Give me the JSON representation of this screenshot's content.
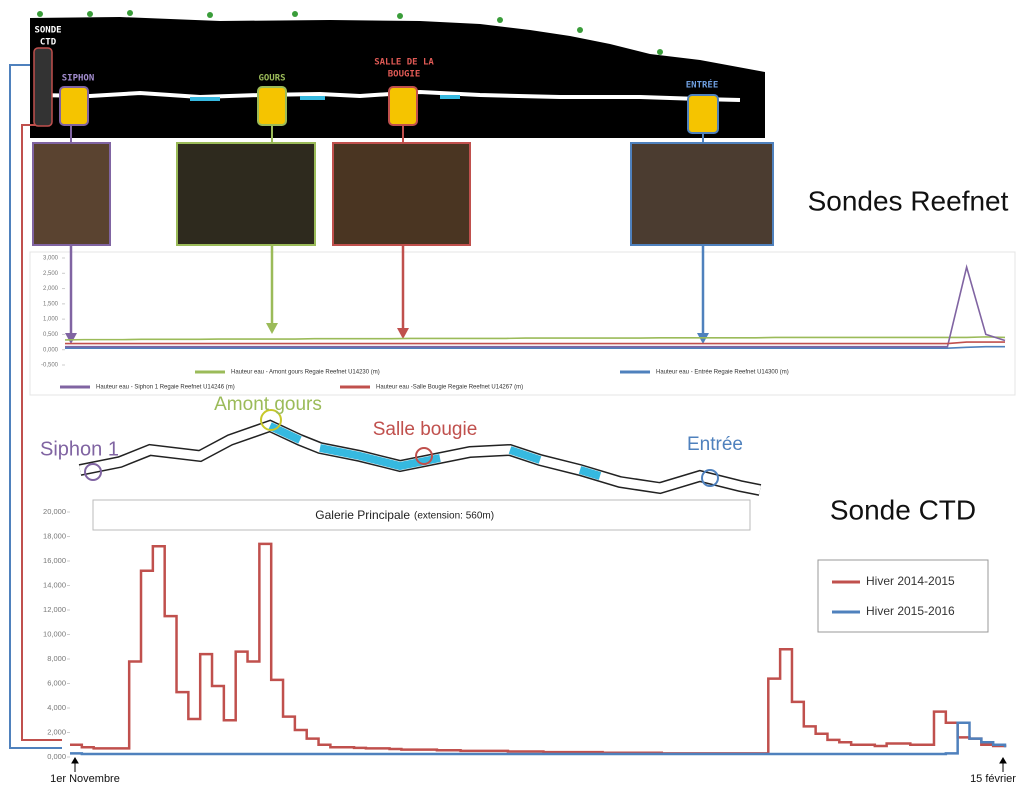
{
  "figure": {
    "profile_labels": {
      "ctd": [
        "SONDE",
        "CTD"
      ],
      "siphon": "SIPHON",
      "gours": "GOURS",
      "bougie": [
        "SALLE DE LA",
        "BOUGIE"
      ],
      "entree": "ENTRÉE"
    },
    "map_labels": {
      "siphon": "Siphon 1",
      "gours": "Amont gours",
      "bougie": "Salle bougie",
      "entree": "Entrée"
    },
    "map_caption": "Galerie Principale",
    "map_caption_note": "(extension: 560m)"
  },
  "chart_data": [
    {
      "type": "line",
      "title": "Sondes Reefnet",
      "legend": "bottom",
      "categories": [
        null,
        null,
        null,
        null,
        null,
        null,
        null,
        null,
        null,
        null,
        null,
        null,
        null,
        null,
        null,
        null,
        null,
        null,
        null,
        null,
        null,
        null,
        null,
        null,
        null,
        null,
        null,
        null,
        null,
        null,
        null,
        null,
        null,
        null,
        null,
        null,
        null,
        null,
        null,
        null,
        null,
        null,
        null,
        null,
        null,
        null,
        null,
        null,
        null,
        null
      ],
      "ylim": [
        -0.5,
        3
      ],
      "yticks": [
        {
          "value": -0.5,
          "label": "-0,500"
        },
        {
          "value": 0,
          "label": "0,000"
        },
        {
          "value": 0.5,
          "label": "0,500"
        },
        {
          "value": 1,
          "label": "1,000"
        },
        {
          "value": 1.5,
          "label": "1,500"
        },
        {
          "value": 2,
          "label": "2,000"
        },
        {
          "value": 2.5,
          "label": "2,500"
        },
        {
          "value": 3,
          "label": "3,000"
        }
      ],
      "series": [
        {
          "name": "Hauteur eau - Amont gours Regaie Reefnet U14230 (m)",
          "color": "#9bbb59",
          "values": [
            0.32,
            0.33,
            0.33,
            0.33,
            0.34,
            0.34,
            0.34,
            0.34,
            0.35,
            0.35,
            0.35,
            0.35,
            0.35,
            0.36,
            0.36,
            0.36,
            0.36,
            0.36,
            0.37,
            0.37,
            0.37,
            0.37,
            0.37,
            0.37,
            0.38,
            0.38,
            0.38,
            0.38,
            0.38,
            0.38,
            0.38,
            0.39,
            0.39,
            0.39,
            0.39,
            0.39,
            0.39,
            0.4,
            0.4,
            0.4,
            0.4,
            0.4,
            0.4,
            0.4,
            0.4,
            0.4,
            0.4,
            0.4,
            0.42,
            0.4
          ]
        },
        {
          "name": "Hauteur eau - Entrée Regaie Reefnet U14300 (m)",
          "color": "#4f81bd",
          "values": [
            0.05,
            0.05,
            0.05,
            0.05,
            0.05,
            0.05,
            0.05,
            0.05,
            0.05,
            0.05,
            0.05,
            0.05,
            0.05,
            0.05,
            0.05,
            0.05,
            0.05,
            0.05,
            0.05,
            0.05,
            0.05,
            0.05,
            0.05,
            0.05,
            0.05,
            0.05,
            0.05,
            0.05,
            0.05,
            0.05,
            0.05,
            0.05,
            0.05,
            0.05,
            0.05,
            0.05,
            0.05,
            0.05,
            0.05,
            0.05,
            0.05,
            0.05,
            0.05,
            0.05,
            0.05,
            0.05,
            0.05,
            0.08,
            0.1,
            0.1
          ]
        },
        {
          "name": "Hauteur eau - Siphon 1 Regaie Reefnet U14246 (m)",
          "color": "#8064a2",
          "values": [
            0.1,
            0.1,
            0.1,
            0.1,
            0.1,
            0.1,
            0.1,
            0.1,
            0.1,
            0.1,
            0.1,
            0.1,
            0.1,
            0.1,
            0.1,
            0.1,
            0.1,
            0.1,
            0.1,
            0.1,
            0.1,
            0.1,
            0.1,
            0.1,
            0.1,
            0.1,
            0.1,
            0.1,
            0.1,
            0.1,
            0.1,
            0.1,
            0.1,
            0.1,
            0.1,
            0.1,
            0.1,
            0.1,
            0.1,
            0.1,
            0.1,
            0.1,
            0.1,
            0.1,
            0.1,
            0.1,
            0.1,
            2.7,
            0.5,
            0.3
          ]
        },
        {
          "name": "Hauteur eau -Salle Bougie Regaie Reefnet U14267 (m)",
          "color": "#c0504d",
          "values": [
            0.2,
            0.2,
            0.2,
            0.2,
            0.2,
            0.2,
            0.2,
            0.2,
            0.2,
            0.2,
            0.2,
            0.2,
            0.2,
            0.2,
            0.2,
            0.2,
            0.2,
            0.2,
            0.2,
            0.2,
            0.2,
            0.2,
            0.2,
            0.2,
            0.2,
            0.2,
            0.2,
            0.2,
            0.2,
            0.2,
            0.2,
            0.2,
            0.2,
            0.2,
            0.2,
            0.2,
            0.2,
            0.2,
            0.2,
            0.2,
            0.2,
            0.2,
            0.2,
            0.2,
            0.2,
            0.2,
            0.2,
            0.25,
            0.25,
            0.25
          ]
        }
      ]
    },
    {
      "type": "line",
      "title": "Sonde CTD",
      "legend": "right",
      "step": true,
      "categories": [
        "1er Novembre",
        null,
        null,
        null,
        null,
        null,
        null,
        null,
        null,
        null,
        null,
        null,
        null,
        null,
        null,
        null,
        null,
        null,
        null,
        null,
        null,
        null,
        null,
        null,
        null,
        null,
        null,
        null,
        null,
        null,
        null,
        null,
        null,
        null,
        null,
        null,
        null,
        null,
        null,
        null,
        null,
        null,
        null,
        null,
        null,
        null,
        null,
        null,
        null,
        null,
        null,
        null,
        null,
        null,
        null,
        null,
        null,
        null,
        null,
        null,
        null,
        null,
        null,
        null,
        null,
        null,
        null,
        null,
        null,
        null,
        null,
        null,
        null,
        null,
        null,
        null,
        null,
        null,
        null,
        "15 février"
      ],
      "ylim": [
        0,
        20
      ],
      "yticks": [
        {
          "value": 0,
          "label": "0,000"
        },
        {
          "value": 2,
          "label": "2,000"
        },
        {
          "value": 4,
          "label": "4,000"
        },
        {
          "value": 6,
          "label": "6,000"
        },
        {
          "value": 8,
          "label": "8,000"
        },
        {
          "value": 10,
          "label": "10,000"
        },
        {
          "value": 12,
          "label": "12,000"
        },
        {
          "value": 14,
          "label": "14,000"
        },
        {
          "value": 16,
          "label": "16,000"
        },
        {
          "value": 18,
          "label": "18,000"
        },
        {
          "value": 20,
          "label": "20,000"
        }
      ],
      "series": [
        {
          "name": "Hiver 2014-2015",
          "color": "#c0504d",
          "values": [
            1.0,
            0.8,
            0.7,
            0.7,
            0.7,
            7.8,
            15.2,
            17.2,
            11.5,
            5.3,
            3.1,
            8.4,
            5.8,
            3.0,
            8.6,
            7.8,
            17.4,
            6.3,
            3.3,
            2.2,
            1.5,
            1.0,
            0.8,
            0.8,
            0.75,
            0.7,
            0.7,
            0.65,
            0.6,
            0.6,
            0.6,
            0.55,
            0.55,
            0.5,
            0.5,
            0.5,
            0.5,
            0.45,
            0.45,
            0.45,
            0.4,
            0.4,
            0.4,
            0.4,
            0.4,
            0.35,
            0.35,
            0.35,
            0.35,
            0.35,
            0.3,
            0.3,
            0.3,
            0.3,
            0.3,
            0.3,
            0.3,
            0.3,
            0.3,
            6.4,
            8.8,
            4.5,
            2.5,
            1.9,
            1.4,
            1.2,
            1.0,
            1.0,
            0.9,
            1.1,
            1.1,
            1.0,
            1.0,
            3.7,
            2.8,
            1.6,
            1.5,
            1.0,
            0.9,
            0.8
          ]
        },
        {
          "name": "Hiver 2015-2016",
          "color": "#4f81bd",
          "values": [
            0.3,
            0.25,
            0.25,
            0.25,
            0.25,
            0.25,
            0.25,
            0.25,
            0.25,
            0.25,
            0.25,
            0.25,
            0.25,
            0.25,
            0.25,
            0.25,
            0.25,
            0.25,
            0.25,
            0.25,
            0.25,
            0.25,
            0.25,
            0.25,
            0.25,
            0.25,
            0.25,
            0.25,
            0.25,
            0.25,
            0.25,
            0.25,
            0.25,
            0.25,
            0.25,
            0.25,
            0.25,
            0.25,
            0.25,
            0.25,
            0.25,
            0.25,
            0.25,
            0.25,
            0.25,
            0.25,
            0.25,
            0.25,
            0.25,
            0.25,
            0.25,
            0.25,
            0.25,
            0.25,
            0.25,
            0.25,
            0.25,
            0.25,
            0.25,
            0.25,
            0.25,
            0.25,
            0.25,
            0.25,
            0.25,
            0.25,
            0.25,
            0.25,
            0.25,
            0.25,
            0.25,
            0.25,
            0.25,
            0.25,
            0.3,
            2.8,
            1.5,
            1.2,
            1.0,
            0.8
          ]
        }
      ]
    }
  ]
}
